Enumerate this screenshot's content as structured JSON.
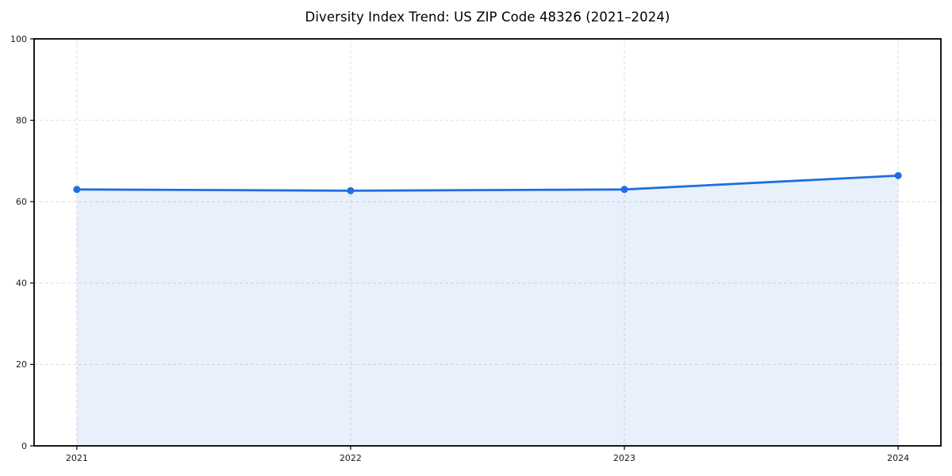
{
  "page": {
    "background": "#ffffff"
  },
  "chart_data": {
    "type": "area",
    "title": "Diversity Index Trend: US ZIP Code 48326 (2021–2024)",
    "categories": [
      "2021",
      "2022",
      "2023",
      "2024"
    ],
    "values": [
      63.0,
      62.7,
      63.0,
      66.4
    ],
    "xlabel": "",
    "ylabel": "",
    "ylim": [
      0,
      100
    ],
    "yticks": [
      0,
      20,
      40,
      60,
      80,
      100
    ],
    "grid": true,
    "grid_style": "dashed",
    "legend_position": "none",
    "line_color": "#1e6ee1",
    "marker": "circle",
    "marker_color": "#1e6ee1",
    "fill_color": "#1e6ee1",
    "fill_opacity": 0.1,
    "frame": "full-box",
    "grid_color": "#dedede",
    "spine_color": "#000000",
    "text_color": "#1a1a1a"
  }
}
